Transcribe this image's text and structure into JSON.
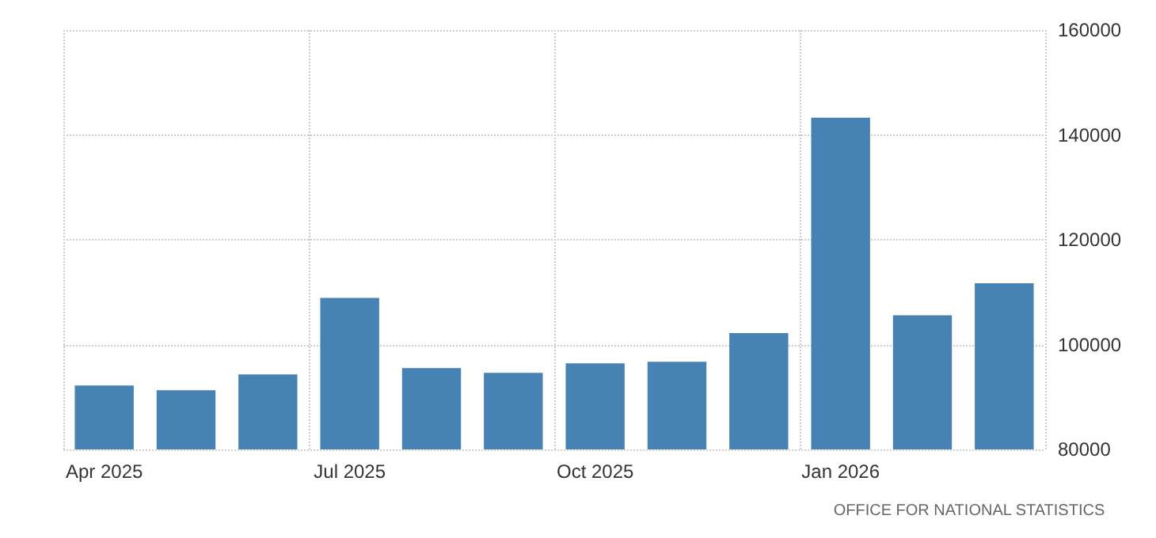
{
  "chart_data": {
    "type": "bar",
    "categories": [
      "Apr 2025",
      null,
      null,
      "Jul 2025",
      null,
      null,
      "Oct 2025",
      null,
      null,
      "Jan 2026",
      null,
      null
    ],
    "values": [
      92200,
      91300,
      94300,
      108900,
      95500,
      94600,
      96400,
      96700,
      102200,
      143300,
      105600,
      111700
    ],
    "color": "#4682b4",
    "ylim": [
      80000,
      160000
    ],
    "yticks": [
      80000,
      100000,
      120000,
      140000,
      160000
    ],
    "grid": true,
    "annotations": [
      "OFFICE FOR NATIONAL STATISTICS"
    ]
  }
}
